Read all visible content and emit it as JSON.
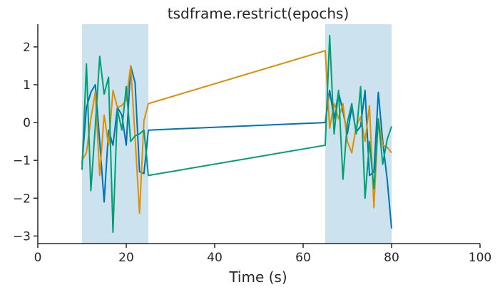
{
  "chart_data": {
    "type": "line",
    "title": "tsdframe.restrict(epochs)",
    "xlabel": "Time (s)",
    "ylabel": "",
    "xlim": [
      0,
      100
    ],
    "ylim": [
      -3.2,
      2.6
    ],
    "xticks": [
      0,
      20,
      40,
      60,
      80,
      100
    ],
    "yticks": [
      -3,
      -2,
      -1,
      0,
      1,
      2
    ],
    "xtick_labels": [
      "0",
      "20",
      "40",
      "60",
      "80",
      "100"
    ],
    "ytick_labels": [
      "−3",
      "−2",
      "−1",
      "0",
      "1",
      "2"
    ],
    "grid": false,
    "epochs": [
      {
        "start": 10,
        "end": 25,
        "color": "#cce3ef"
      },
      {
        "start": 65,
        "end": 80,
        "color": "#cce3ef"
      }
    ],
    "x": [
      10,
      11,
      12,
      13,
      14,
      15,
      16,
      17,
      18,
      19,
      20,
      21,
      22,
      23,
      24,
      25,
      65,
      66,
      67,
      68,
      69,
      70,
      71,
      72,
      73,
      74,
      75,
      76,
      77,
      78,
      79,
      80
    ],
    "series": [
      {
        "color": "#0173b2",
        "values": [
          -1.1,
          0.4,
          0.8,
          1.0,
          -0.5,
          -2.1,
          -0.2,
          -0.6,
          0.4,
          0.2,
          -0.6,
          1.5,
          1.05,
          -1.3,
          -1.35,
          -0.2,
          0.0,
          0.85,
          0.1,
          0.8,
          0.3,
          -0.3,
          0.4,
          -0.25,
          -0.1,
          0.85,
          -1.4,
          -1.3,
          0.8,
          -0.5,
          -1.5,
          -2.8
        ]
      },
      {
        "color": "#de8f05",
        "values": [
          -1.0,
          -0.8,
          0.1,
          0.8,
          -1.4,
          0.2,
          -0.6,
          0.85,
          0.4,
          0.45,
          0.6,
          1.5,
          -0.4,
          -2.4,
          0.05,
          0.5,
          1.9,
          -0.15,
          0.5,
          0.1,
          0.5,
          -0.5,
          -0.8,
          -0.1,
          0.15,
          -0.5,
          0.45,
          -2.25,
          0.1,
          -0.6,
          -0.65,
          -0.8
        ]
      },
      {
        "color": "#029e73",
        "values": [
          -1.25,
          1.55,
          -1.8,
          -0.1,
          1.75,
          0.75,
          1.2,
          -2.9,
          0.35,
          -0.2,
          0.95,
          -0.5,
          -0.35,
          -0.3,
          -0.2,
          -1.4,
          -0.6,
          2.3,
          -0.3,
          0.85,
          -1.5,
          0.0,
          0.5,
          -0.3,
          0.95,
          -2.0,
          -0.5,
          -1.75,
          0.1,
          -1.1,
          -0.45,
          -0.1
        ]
      }
    ]
  }
}
